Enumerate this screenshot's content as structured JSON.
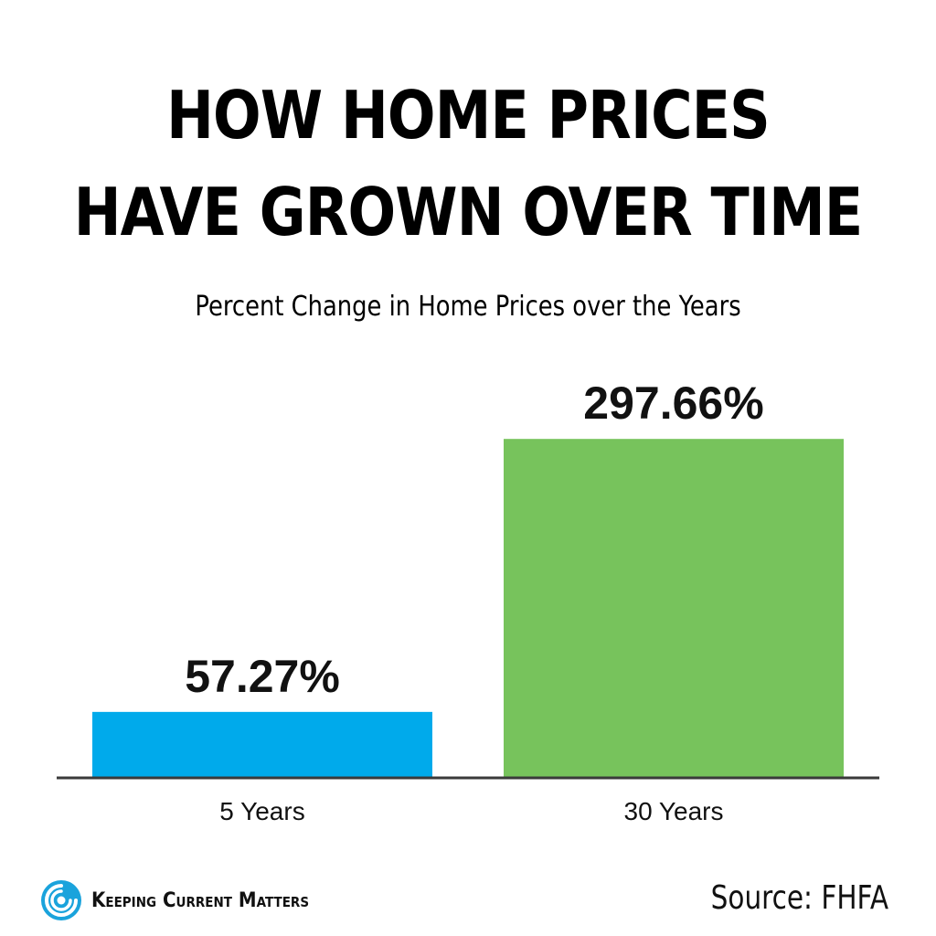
{
  "header": {
    "title_line1": "HOW HOME PRICES",
    "title_line2": "HAVE GROWN OVER TIME",
    "subtitle": "Percent Change in Home Prices over the Years"
  },
  "chart_data": {
    "type": "bar",
    "title": "HOW HOME PRICES HAVE GROWN OVER TIME",
    "subtitle": "Percent Change in Home Prices over the Years",
    "categories": [
      "5 Years",
      "30 Years"
    ],
    "values": [
      57.27,
      297.66
    ],
    "value_labels": [
      "57.27%",
      "297.66%"
    ],
    "colors": [
      "#00aaeb",
      "#77c35c"
    ],
    "xlabel": "",
    "ylabel": "",
    "ylim": [
      0,
      380
    ],
    "grid": false,
    "legend": "none"
  },
  "footer": {
    "brand": "Keeping Current Matters",
    "logo_icon": "swirl-logo-icon",
    "brand_color": "#1aa3dc",
    "source": "Source: FHFA"
  }
}
